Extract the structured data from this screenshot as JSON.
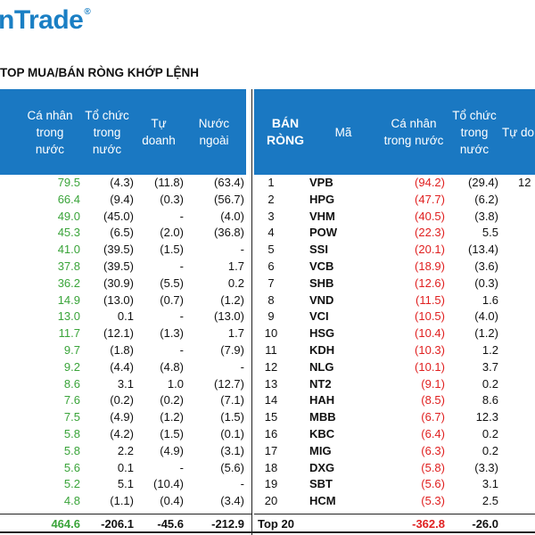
{
  "brand": {
    "name": "nTrade",
    "reg": "®"
  },
  "title": "TOP MUA/BÁN RÒNG KHỚP LỆNH",
  "left": {
    "headers": [
      "Cá nhân\ntrong\nnước",
      "Tổ chức\ntrong\nnước",
      "Tự\ndoanh",
      "Nước\nngoài"
    ],
    "rows": [
      [
        "79.5",
        "(4.3)",
        "(11.8)",
        "(63.4)"
      ],
      [
        "66.4",
        "(9.4)",
        "(0.3)",
        "(56.7)"
      ],
      [
        "49.0",
        "(45.0)",
        "-",
        "(4.0)"
      ],
      [
        "45.3",
        "(6.5)",
        "(2.0)",
        "(36.8)"
      ],
      [
        "41.0",
        "(39.5)",
        "(1.5)",
        "-"
      ],
      [
        "37.8",
        "(39.5)",
        "-",
        "1.7"
      ],
      [
        "36.2",
        "(30.9)",
        "(5.5)",
        "0.2"
      ],
      [
        "14.9",
        "(13.0)",
        "(0.7)",
        "(1.2)"
      ],
      [
        "13.0",
        "0.1",
        "-",
        "(13.0)"
      ],
      [
        "11.7",
        "(12.1)",
        "(1.3)",
        "1.7"
      ],
      [
        "9.7",
        "(1.8)",
        "-",
        "(7.9)"
      ],
      [
        "9.2",
        "(4.4)",
        "(4.8)",
        "-"
      ],
      [
        "8.6",
        "3.1",
        "1.0",
        "(12.7)"
      ],
      [
        "7.6",
        "(0.2)",
        "(0.2)",
        "(7.1)"
      ],
      [
        "7.5",
        "(4.9)",
        "(1.2)",
        "(1.5)"
      ],
      [
        "5.8",
        "(4.2)",
        "(1.5)",
        "(0.1)"
      ],
      [
        "5.8",
        "2.2",
        "(4.9)",
        "(3.1)"
      ],
      [
        "5.6",
        "0.1",
        "-",
        "(5.6)"
      ],
      [
        "5.2",
        "5.1",
        "(10.4)",
        "-"
      ],
      [
        "4.8",
        "(1.1)",
        "(0.4)",
        "(3.4)"
      ]
    ],
    "total": [
      "464.6",
      "-206.1",
      "-45.6",
      "-212.9"
    ]
  },
  "right": {
    "headers": [
      "BÁN\nRÒNG",
      "Mã",
      "Cá nhân\ntrong nước",
      "Tổ chức\ntrong\nnước",
      "Tự do"
    ],
    "rows": [
      [
        "1",
        "VPB",
        "(94.2)",
        "(29.4)",
        "12"
      ],
      [
        "2",
        "HPG",
        "(47.7)",
        "(6.2)",
        ""
      ],
      [
        "3",
        "VHM",
        "(40.5)",
        "(3.8)",
        ""
      ],
      [
        "4",
        "POW",
        "(22.3)",
        "5.5",
        ""
      ],
      [
        "5",
        "SSI",
        "(20.1)",
        "(13.4)",
        ""
      ],
      [
        "6",
        "VCB",
        "(18.9)",
        "(3.6)",
        ""
      ],
      [
        "7",
        "SHB",
        "(12.6)",
        "(0.3)",
        ""
      ],
      [
        "8",
        "VND",
        "(11.5)",
        "1.6",
        ""
      ],
      [
        "9",
        "VCI",
        "(10.5)",
        "(4.0)",
        ""
      ],
      [
        "10",
        "HSG",
        "(10.4)",
        "(1.2)",
        ""
      ],
      [
        "11",
        "KDH",
        "(10.3)",
        "1.2",
        ""
      ],
      [
        "12",
        "NLG",
        "(10.1)",
        "3.7",
        ""
      ],
      [
        "13",
        "NT2",
        "(9.1)",
        "0.2",
        ""
      ],
      [
        "14",
        "HAH",
        "(8.5)",
        "8.6",
        ""
      ],
      [
        "15",
        "MBB",
        "(6.7)",
        "12.3",
        ""
      ],
      [
        "16",
        "KBC",
        "(6.4)",
        "0.2",
        ""
      ],
      [
        "17",
        "MIG",
        "(6.3)",
        "0.2",
        ""
      ],
      [
        "18",
        "DXG",
        "(5.8)",
        "(3.3)",
        ""
      ],
      [
        "19",
        "SBT",
        "(5.6)",
        "3.1",
        ""
      ],
      [
        "20",
        "HCM",
        "(5.3)",
        "2.5",
        ""
      ]
    ],
    "total": [
      "Top 20",
      "",
      "-362.8",
      "-26.0",
      ""
    ]
  }
}
